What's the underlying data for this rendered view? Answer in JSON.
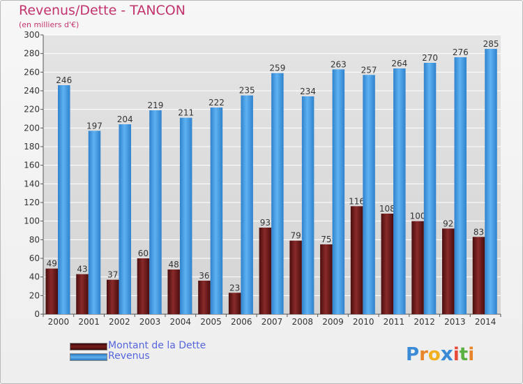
{
  "title": "Revenus/Dette - TANCON",
  "subtitle": "(en milliers d'€)",
  "logo_text": "Proxiti",
  "colors": {
    "title": "#c2336e",
    "debt_bar": "#7a1c1c",
    "revenue_bar": "#3d94dc",
    "legend_text": "#5566dd",
    "grid": "#ffffff",
    "axis_text": "#333333"
  },
  "chart_data": {
    "type": "bar",
    "categories": [
      "2000",
      "2001",
      "2002",
      "2003",
      "2004",
      "2005",
      "2006",
      "2007",
      "2008",
      "2009",
      "2010",
      "2011",
      "2012",
      "2013",
      "2014"
    ],
    "series": [
      {
        "name": "Montant de la Dette",
        "values": [
          49,
          43,
          37,
          60,
          48,
          36,
          23,
          93,
          79,
          75,
          116,
          108,
          100,
          92,
          83
        ]
      },
      {
        "name": "Revenus",
        "values": [
          246,
          197,
          204,
          219,
          211,
          222,
          235,
          259,
          234,
          263,
          257,
          264,
          270,
          276,
          285
        ]
      }
    ],
    "ylim": [
      0,
      300
    ],
    "ytick_step": 20,
    "grid": true,
    "legend": "bottom-left"
  }
}
